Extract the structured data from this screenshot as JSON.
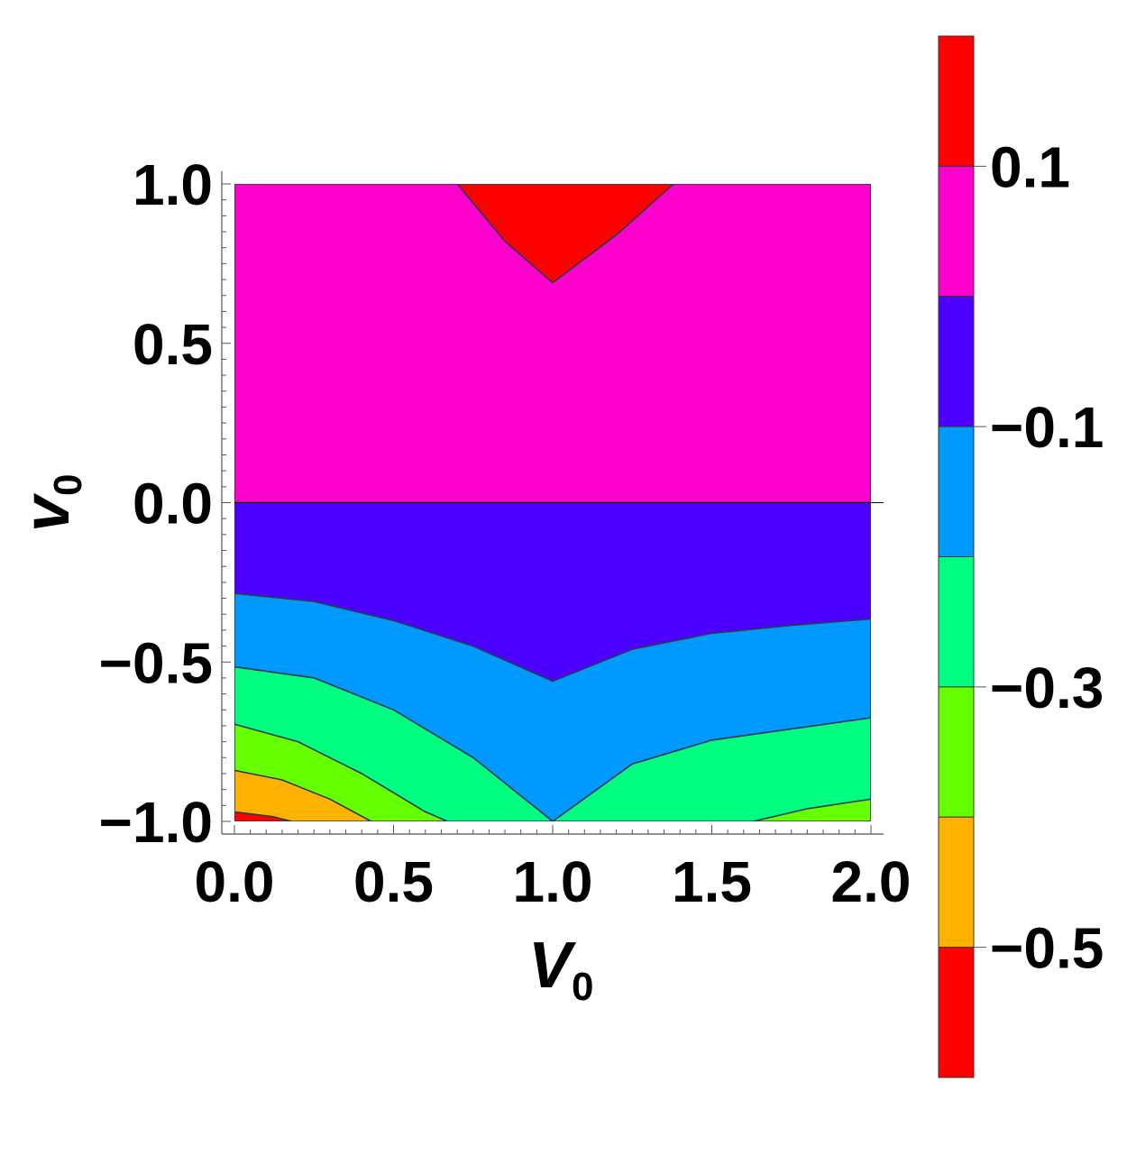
{
  "chart_data": {
    "type": "contour",
    "xlabel": "V",
    "xlabel_subscript": "0",
    "ylabel": "v",
    "ylabel_subscript": "0",
    "xlim": [
      0,
      2
    ],
    "ylim": [
      -1,
      1
    ],
    "x_ticks": [
      "0.0",
      "0.5",
      "1.0",
      "1.5",
      "2.0"
    ],
    "x_tick_values": [
      0,
      0.5,
      1,
      1.5,
      2
    ],
    "y_ticks": [
      "1.0",
      "0.5",
      "0.0",
      "−0.5",
      "−1.0"
    ],
    "y_tick_values": [
      1,
      0.5,
      0,
      -0.5,
      -1
    ],
    "colorbar": {
      "bands": [
        {
          "from": 0.1,
          "to": 0.2,
          "color": "#ff0000"
        },
        {
          "from": 0.0,
          "to": 0.1,
          "color": "#ff00cc"
        },
        {
          "from": -0.1,
          "to": 0.0,
          "color": "#4c00ff"
        },
        {
          "from": -0.2,
          "to": -0.1,
          "color": "#0099ff"
        },
        {
          "from": -0.3,
          "to": -0.2,
          "color": "#00ff80"
        },
        {
          "from": -0.4,
          "to": -0.3,
          "color": "#66ff00"
        },
        {
          "from": -0.5,
          "to": -0.4,
          "color": "#ffb300"
        },
        {
          "from": -0.6,
          "to": -0.5,
          "color": "#ff0000"
        }
      ],
      "tick_labels": [
        "0.1",
        "−0.1",
        "−0.3",
        "−0.5"
      ],
      "tick_values": [
        0.1,
        -0.1,
        -0.3,
        -0.5
      ]
    },
    "contours": [
      {
        "level": 0.1,
        "color": "#ff0000",
        "points": [
          [
            0.7,
            1.0
          ],
          [
            0.85,
            0.82
          ],
          [
            1.0,
            0.69
          ],
          [
            1.2,
            0.84
          ],
          [
            1.38,
            1.0
          ]
        ]
      },
      {
        "level": -0.1,
        "color": "#4c00ff",
        "points": [
          [
            0.0,
            -0.285
          ],
          [
            0.25,
            -0.31
          ],
          [
            0.5,
            -0.37
          ],
          [
            0.75,
            -0.45
          ],
          [
            1.0,
            -0.56
          ],
          [
            1.25,
            -0.46
          ],
          [
            1.5,
            -0.41
          ],
          [
            1.75,
            -0.385
          ],
          [
            2.0,
            -0.365
          ]
        ]
      },
      {
        "level": -0.2,
        "color": "#0099ff",
        "points": [
          [
            0.0,
            -0.515
          ],
          [
            0.25,
            -0.55
          ],
          [
            0.5,
            -0.65
          ],
          [
            0.75,
            -0.8
          ],
          [
            1.0,
            -1.0
          ],
          [
            1.25,
            -0.82
          ],
          [
            1.5,
            -0.745
          ],
          [
            1.75,
            -0.71
          ],
          [
            2.0,
            -0.675
          ]
        ]
      },
      {
        "level": -0.3,
        "color": "#00ff80",
        "points": [
          [
            0.0,
            -0.695
          ],
          [
            0.2,
            -0.75
          ],
          [
            0.4,
            -0.85
          ],
          [
            0.6,
            -0.97
          ],
          [
            0.67,
            -1.0
          ]
        ]
      },
      {
        "level": -0.3,
        "color": "#00ff80",
        "points": [
          [
            1.63,
            -1.0
          ],
          [
            1.8,
            -0.96
          ],
          [
            2.0,
            -0.93
          ]
        ]
      },
      {
        "level": -0.4,
        "color": "#66ff00",
        "points": [
          [
            0.0,
            -0.84
          ],
          [
            0.15,
            -0.87
          ],
          [
            0.3,
            -0.93
          ],
          [
            0.43,
            -1.0
          ]
        ]
      },
      {
        "level": -0.5,
        "color": "#ffb300",
        "points": [
          [
            0.0,
            -0.97
          ],
          [
            0.12,
            -0.985
          ],
          [
            0.18,
            -1.0
          ]
        ]
      }
    ]
  }
}
